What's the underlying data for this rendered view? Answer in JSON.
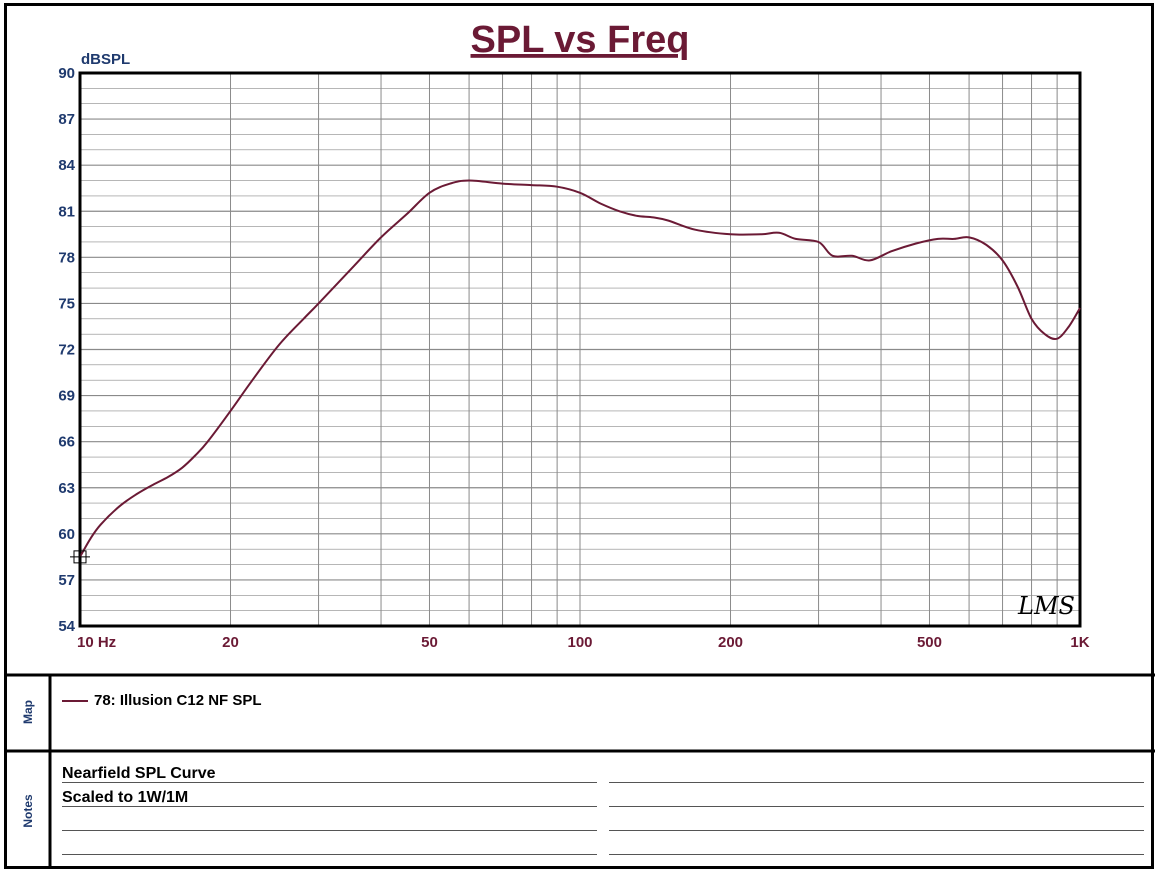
{
  "chart_data": {
    "type": "line",
    "title": "SPL vs Freq",
    "ylabel": "dBSPL",
    "xlabel": "",
    "x_scale": "log",
    "xlim": [
      10,
      1000
    ],
    "ylim": [
      54,
      90
    ],
    "y_ticks": [
      54,
      57,
      60,
      63,
      66,
      69,
      72,
      75,
      78,
      81,
      84,
      87,
      90
    ],
    "y_tick_labels": [
      "54",
      "57",
      "60",
      "63",
      "66",
      "69",
      "72",
      "75",
      "78",
      "81",
      "84",
      "87",
      "90"
    ],
    "x_ticks": [
      10,
      20,
      50,
      100,
      200,
      500,
      1000
    ],
    "x_tick_labels": [
      "10 Hz",
      "20",
      "50",
      "100",
      "200",
      "500",
      "1K"
    ],
    "grid": true,
    "series": [
      {
        "name": "78: Illusion C12  NF SPL",
        "color": "#6b1a35",
        "x": [
          10,
          10.5,
          11,
          12,
          13,
          14,
          15,
          16,
          17,
          18,
          20,
          22,
          25,
          28,
          30,
          35,
          40,
          45,
          50,
          55,
          60,
          70,
          80,
          90,
          100,
          110,
          120,
          130,
          140,
          150,
          170,
          200,
          230,
          250,
          270,
          300,
          320,
          350,
          380,
          420,
          470,
          520,
          560,
          600,
          650,
          700,
          750,
          800,
          850,
          900,
          950,
          1000
        ],
        "y": [
          58.5,
          59.7,
          60.6,
          61.8,
          62.6,
          63.2,
          63.7,
          64.3,
          65.1,
          66.0,
          68.0,
          69.9,
          72.3,
          74.0,
          75.0,
          77.3,
          79.3,
          80.8,
          82.2,
          82.8,
          83.0,
          82.8,
          82.7,
          82.6,
          82.2,
          81.5,
          81.0,
          80.7,
          80.6,
          80.4,
          79.8,
          79.5,
          79.5,
          79.6,
          79.2,
          79.0,
          78.1,
          78.1,
          77.8,
          78.4,
          78.9,
          79.2,
          79.2,
          79.3,
          78.8,
          77.8,
          76.1,
          74.0,
          73.0,
          72.7,
          73.5,
          74.7
        ]
      }
    ]
  },
  "map_panel": {
    "label": "Map",
    "entry": "78: Illusion C12  NF SPL"
  },
  "notes_panel": {
    "label": "Notes",
    "lines": [
      "Nearfield SPL Curve",
      "Scaled to 1W/1M"
    ]
  },
  "watermark": "LMS",
  "colors": {
    "title": "#6b1a35",
    "axis_label": "#1f3a6e",
    "x_tick": "#6b1a35",
    "grid": "#8a8a8a",
    "curve": "#6b1a35"
  }
}
